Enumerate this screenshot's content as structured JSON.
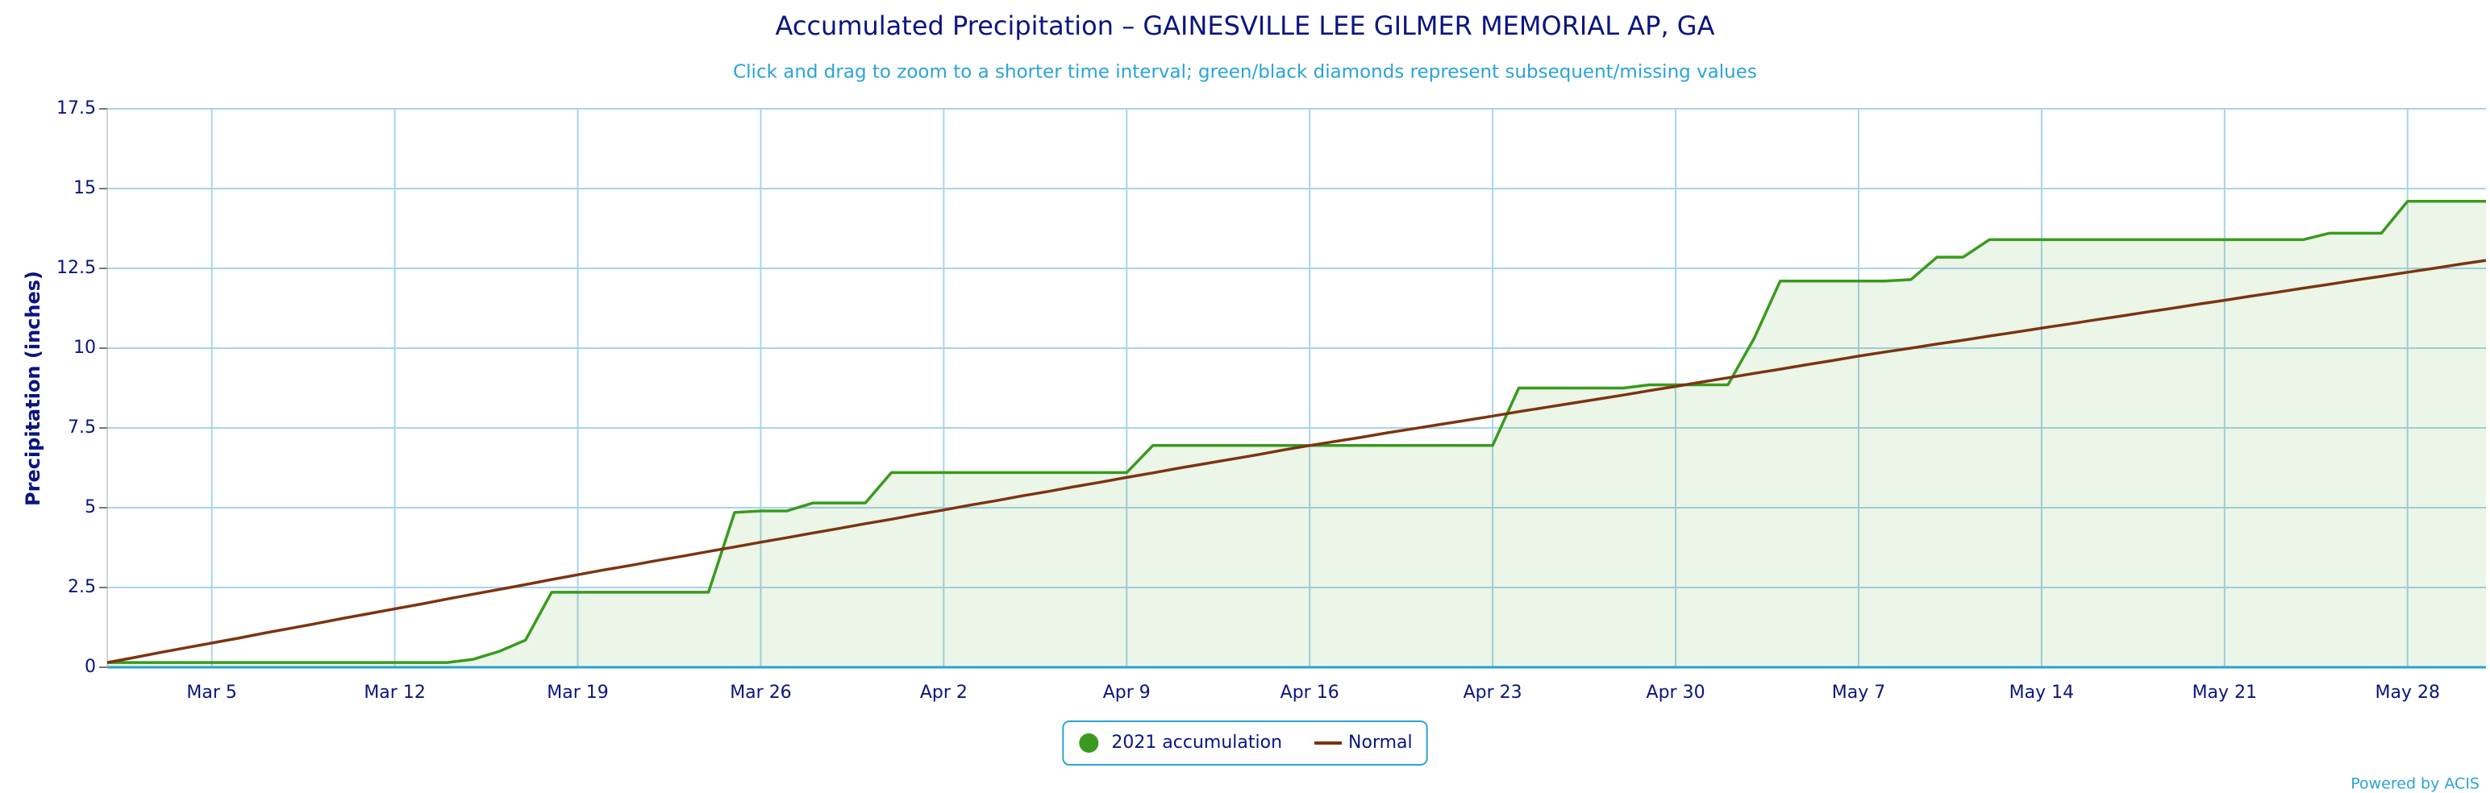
{
  "chart_data": {
    "type": "line",
    "title": "Accumulated Precipitation – GAINESVILLE LEE GILMER MEMORIAL AP, GA",
    "subtitle": "Click and drag to zoom to a shorter time interval; green/black diamonds represent subsequent/missing values",
    "y_label": "Precipitation (inches)",
    "credit": "Powered by ACIS",
    "categories": [
      null,
      null,
      null,
      null,
      "Mar 5",
      null,
      null,
      null,
      null,
      null,
      null,
      "Mar 12",
      null,
      null,
      null,
      null,
      null,
      null,
      "Mar 19",
      null,
      null,
      null,
      null,
      null,
      null,
      "Mar 26",
      null,
      null,
      null,
      null,
      null,
      null,
      "Apr 2",
      null,
      null,
      null,
      null,
      null,
      null,
      "Apr 9",
      null,
      null,
      null,
      null,
      null,
      null,
      "Apr 16",
      null,
      null,
      null,
      null,
      null,
      null,
      "Apr 23",
      null,
      null,
      null,
      null,
      null,
      null,
      "Apr 30",
      null,
      null,
      null,
      null,
      null,
      null,
      "May 7",
      null,
      null,
      null,
      null,
      null,
      null,
      "May 14",
      null,
      null,
      null,
      null,
      null,
      null,
      "May 21",
      null,
      null,
      null,
      null,
      null,
      null,
      "May 28",
      null,
      null,
      null
    ],
    "series": [
      {
        "name": "2021 accumulation",
        "color": "#3a9a1e",
        "fill": true,
        "values": [
          0.15,
          0.15,
          0.15,
          0.15,
          0.15,
          0.15,
          0.15,
          0.15,
          0.15,
          0.15,
          0.15,
          0.15,
          0.15,
          0.15,
          0.25,
          0.5,
          0.85,
          2.35,
          2.35,
          2.35,
          2.35,
          2.35,
          2.35,
          2.35,
          4.85,
          4.9,
          4.9,
          5.15,
          5.15,
          5.15,
          6.1,
          6.1,
          6.1,
          6.1,
          6.1,
          6.1,
          6.1,
          6.1,
          6.1,
          6.1,
          6.95,
          6.95,
          6.95,
          6.95,
          6.95,
          6.95,
          6.95,
          6.95,
          6.95,
          6.95,
          6.95,
          6.95,
          6.95,
          6.95,
          8.75,
          8.75,
          8.75,
          8.75,
          8.75,
          8.85,
          8.85,
          8.85,
          8.85,
          10.3,
          12.1,
          12.1,
          12.1,
          12.1,
          12.1,
          12.15,
          12.85,
          12.85,
          13.4,
          13.4,
          13.4,
          13.4,
          13.4,
          13.4,
          13.4,
          13.4,
          13.4,
          13.4,
          13.4,
          13.4,
          13.4,
          13.6,
          13.6,
          13.6,
          14.6,
          14.6,
          14.6,
          14.6
        ]
      },
      {
        "name": "Normal",
        "color": "#7b3410",
        "fill": false,
        "values": [
          0.15,
          0.3,
          0.46,
          0.61,
          0.76,
          0.91,
          1.07,
          1.22,
          1.37,
          1.53,
          1.68,
          1.83,
          1.98,
          2.14,
          2.29,
          2.44,
          2.59,
          2.75,
          2.9,
          3.05,
          3.19,
          3.34,
          3.48,
          3.63,
          3.77,
          3.92,
          4.06,
          4.21,
          4.35,
          4.5,
          4.64,
          4.79,
          4.93,
          5.08,
          5.22,
          5.37,
          5.51,
          5.66,
          5.8,
          5.95,
          6.09,
          6.24,
          6.38,
          6.52,
          6.66,
          6.81,
          6.95,
          7.08,
          7.21,
          7.35,
          7.48,
          7.61,
          7.74,
          7.87,
          8.01,
          8.14,
          8.27,
          8.4,
          8.53,
          8.67,
          8.8,
          8.94,
          9.07,
          9.21,
          9.34,
          9.48,
          9.61,
          9.75,
          9.88,
          10.0,
          10.13,
          10.25,
          10.38,
          10.5,
          10.63,
          10.75,
          10.88,
          11.0,
          11.13,
          11.25,
          11.38,
          11.5,
          11.63,
          11.75,
          11.88,
          12.0,
          12.13,
          12.25,
          12.38,
          12.5,
          12.63,
          12.75
        ]
      }
    ],
    "ylim": [
      0,
      17.5
    ],
    "yticks": [
      0,
      2.5,
      5,
      7.5,
      10,
      12.5,
      15,
      17.5
    ],
    "grid": true,
    "legend": "bottom"
  }
}
